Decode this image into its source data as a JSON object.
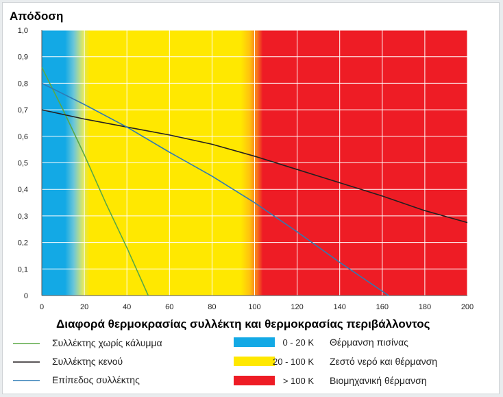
{
  "chart_data": {
    "type": "line",
    "ylabel": "Απόδοση",
    "xlabel": "Διαφορά θερμοκρασίας συλλέκτη και θερμοκρασίας περιβάλλοντος",
    "xlim": [
      0,
      200
    ],
    "ylim": [
      0,
      1.0
    ],
    "x_ticks": [
      "0",
      "20",
      "40",
      "60",
      "80",
      "100",
      "120",
      "140",
      "160",
      "180",
      "200"
    ],
    "y_ticks": [
      "0",
      "0,1",
      "0,2",
      "0,3",
      "0,4",
      "0,5",
      "0,6",
      "0,7",
      "0,8",
      "0,9",
      "1,0"
    ],
    "grid": true,
    "bands": [
      {
        "range_label": "0 - 20 K",
        "name": "Θέρμανση πισίνας",
        "from": 0,
        "to": 20,
        "color": "#13a9e5"
      },
      {
        "range_label": "20 - 100 K",
        "name": "Ζεστό νερό και θέρμανση",
        "from": 20,
        "to": 100,
        "color": "#ffe800"
      },
      {
        "range_label": "> 100 K",
        "name": "Βιομηχανική θέρμανση",
        "from": 100,
        "to": 200,
        "color": "#ee1c25"
      }
    ],
    "series": [
      {
        "name": "Συλλέκτης χωρίς κάλυμμα",
        "color": "#5aa845",
        "x": [
          0,
          10,
          20,
          30,
          40,
          50
        ],
        "y": [
          0.86,
          0.7,
          0.53,
          0.35,
          0.18,
          0.0
        ]
      },
      {
        "name": "Συλλέκτης κενού",
        "color": "#231f20",
        "x": [
          0,
          20,
          40,
          60,
          80,
          100,
          120,
          140,
          160,
          180,
          200
        ],
        "y": [
          0.7,
          0.665,
          0.635,
          0.605,
          0.57,
          0.525,
          0.475,
          0.425,
          0.375,
          0.32,
          0.275
        ]
      },
      {
        "name": "Επίπεδος συλλέκτης",
        "color": "#2e7bb5",
        "x": [
          0,
          20,
          40,
          60,
          80,
          100,
          120,
          140,
          163
        ],
        "y": [
          0.8,
          0.72,
          0.635,
          0.54,
          0.45,
          0.35,
          0.24,
          0.125,
          0.0
        ]
      }
    ]
  }
}
